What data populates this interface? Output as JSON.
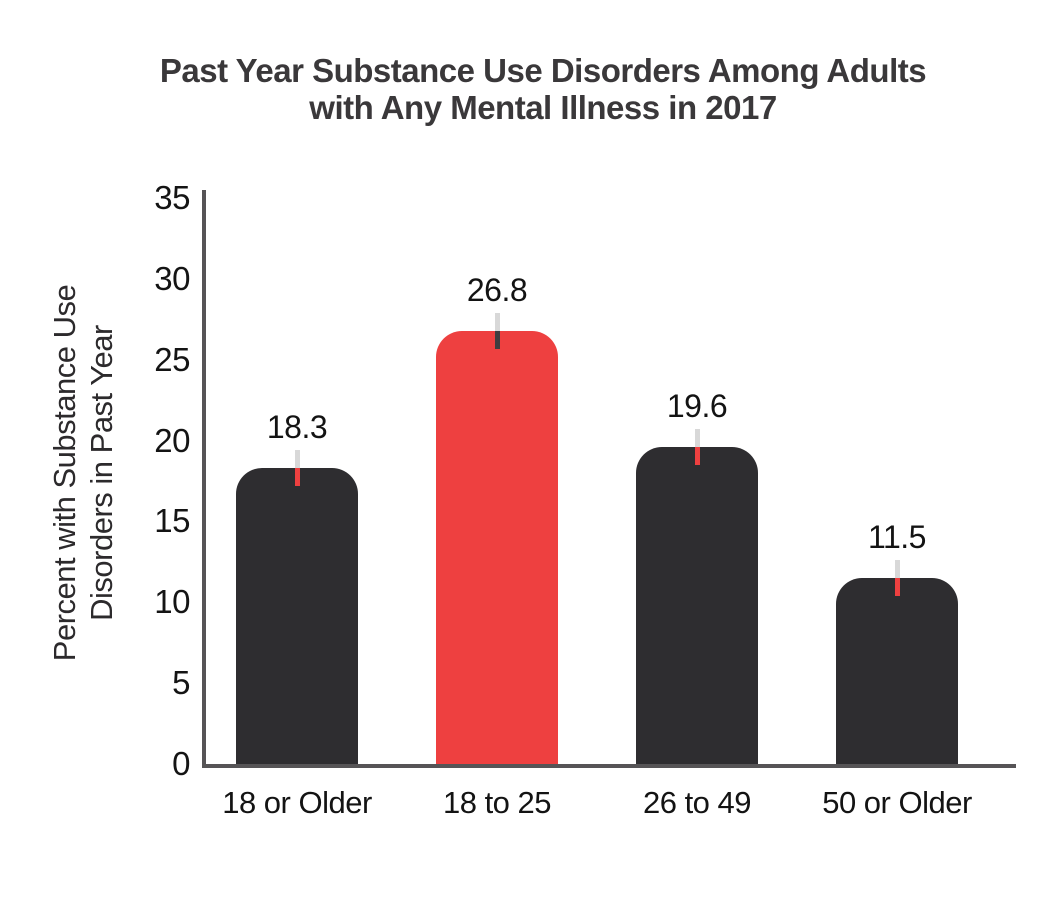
{
  "title": {
    "line1": "Past Year Substance Use Disorders Among Adults",
    "line2": "with Any Mental Illness in 2017"
  },
  "chart_data": {
    "type": "bar",
    "title": "Past Year Substance Use Disorders Among Adults with Any Mental Illness in 2017",
    "categories": [
      "18 or Older",
      "18 to 25",
      "26 to 49",
      "50 or Older"
    ],
    "values": [
      18.3,
      26.8,
      19.6,
      11.5
    ],
    "data_labels": [
      "18.3",
      "26.8",
      "19.6",
      "11.5"
    ],
    "bar_colors": [
      "#2e2d30",
      "#ee4040",
      "#2e2d30",
      "#2e2d30"
    ],
    "whisker_lower_colors": [
      "#ee4040",
      "#3f3d40",
      "#ee4040",
      "#ee4040"
    ],
    "whisker_upper_color": "#d8d8d8",
    "xlabel": "",
    "ylabel": "Percent with Substance Use Disorders in Past Year",
    "ylabel_lines": [
      "Percent with Substance Use",
      "Disorders in Past Year"
    ],
    "yticks": [
      0,
      5,
      10,
      15,
      20,
      25,
      30,
      35
    ],
    "ylim": [
      0,
      35
    ],
    "grid": false,
    "legend": "none",
    "highlight_category": "18 to 25"
  },
  "colors": {
    "axis": "#565456",
    "dark_bar": "#2e2d30",
    "accent_red": "#ee4040",
    "whisker_gray": "#d8d8d8",
    "text": "#131313",
    "title_text": "#3a383a"
  }
}
